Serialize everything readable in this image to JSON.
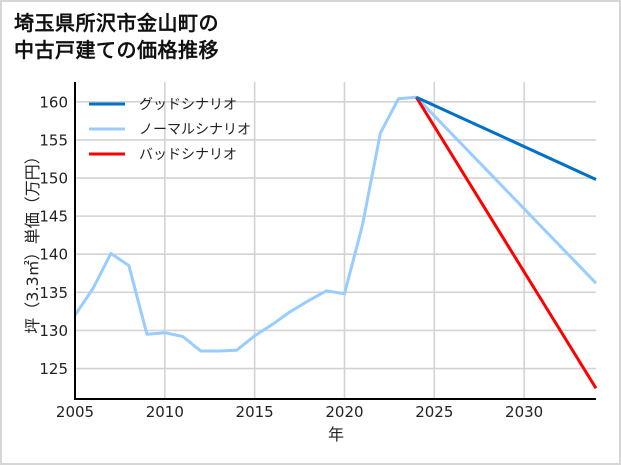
{
  "header": {
    "title_line1": "埼玉県所沢市金山町の",
    "title_line2": "中古戸建ての価格推移"
  },
  "colors": {
    "good": "#0070C8",
    "normal": "#99CCFF",
    "bad": "#FF0000",
    "grid": "#d3d3d3",
    "axis": "#000000"
  },
  "chart_data": {
    "type": "line",
    "title": "埼玉県所沢市金山町の中古戸建ての価格推移",
    "xlabel": "年",
    "ylabel": "坪（3.3㎡）単価（万円）",
    "xlim": [
      2005,
      2034
    ],
    "ylim": [
      121,
      162.6
    ],
    "xticks": [
      2005,
      2010,
      2015,
      2020,
      2025,
      2030
    ],
    "yticks": [
      125,
      130,
      135,
      140,
      145,
      150,
      155,
      160
    ],
    "grid": true,
    "legend_position": "upper left",
    "series": [
      {
        "name": "グッドシナリオ",
        "color": "#0070C8",
        "x": [
          2024,
          2034
        ],
        "values": [
          160.6,
          149.8
        ]
      },
      {
        "name": "ノーマルシナリオ",
        "color": "#99CCFF",
        "x": [
          2005,
          2006,
          2007,
          2008,
          2009,
          2010,
          2011,
          2012,
          2013,
          2014,
          2015,
          2016,
          2017,
          2018,
          2019,
          2020,
          2021,
          2022,
          2023,
          2024,
          2034
        ],
        "values": [
          132.0,
          135.5,
          140.1,
          138.5,
          129.5,
          129.7,
          129.2,
          127.3,
          127.3,
          127.4,
          129.3,
          130.8,
          132.5,
          133.9,
          135.2,
          134.8,
          143.8,
          155.9,
          160.4,
          160.6,
          136.2
        ]
      },
      {
        "name": "バッドシナリオ",
        "color": "#FF0000",
        "x": [
          2024,
          2034
        ],
        "values": [
          160.6,
          122.4
        ]
      }
    ]
  }
}
